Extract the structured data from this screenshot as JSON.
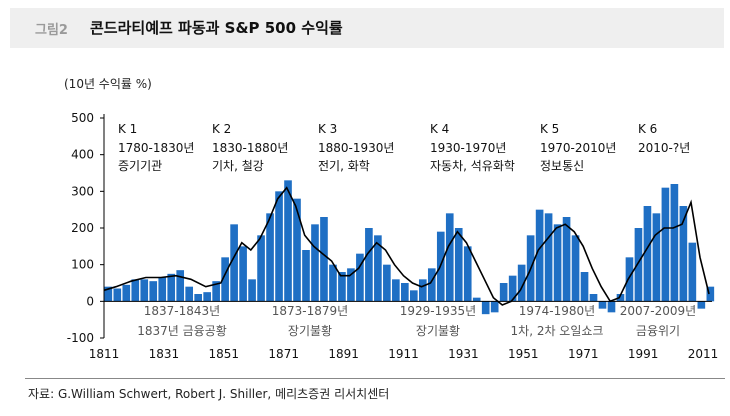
{
  "figure": {
    "label": "그림2",
    "title": "콘드라티예프 파동과 S&P 500 수익률",
    "unit": "(10년 수익률 %)",
    "source": "자료: G.William Schwert, Robert J. Shiller, 메리츠증권 리서치센터"
  },
  "colors": {
    "bars": "#1f6fc4",
    "line": "#000000",
    "axis": "#000000",
    "annotation": "#111111",
    "event": "#555555"
  },
  "chart_data": {
    "type": "bar",
    "x_ticks": [
      "1811",
      "1831",
      "1851",
      "1871",
      "1891",
      "1911",
      "1931",
      "1951",
      "1971",
      "1991",
      "2011"
    ],
    "y_ticks": [
      "500",
      "400",
      "300",
      "200",
      "100",
      "0",
      "-100"
    ],
    "xlim": [
      1811,
      2014
    ],
    "ylim": [
      -100,
      500
    ],
    "series": [
      {
        "kind": "bar",
        "x": [
          1811,
          1814,
          1817,
          1820,
          1823,
          1826,
          1829,
          1832,
          1835,
          1838,
          1841,
          1844,
          1847,
          1850,
          1853,
          1856,
          1859,
          1862,
          1865,
          1868,
          1871,
          1874,
          1877,
          1880,
          1883,
          1886,
          1889,
          1892,
          1895,
          1898,
          1901,
          1904,
          1907,
          1910,
          1913,
          1916,
          1919,
          1922,
          1925,
          1928,
          1931,
          1934,
          1937,
          1940,
          1943,
          1946,
          1949,
          1952,
          1955,
          1958,
          1961,
          1964,
          1967,
          1970,
          1973,
          1976,
          1979,
          1982,
          1985,
          1988,
          1991,
          1994,
          1997,
          2000,
          2003,
          2006,
          2009,
          2012
        ],
        "values": [
          40,
          35,
          45,
          60,
          60,
          55,
          65,
          75,
          85,
          40,
          20,
          25,
          55,
          120,
          210,
          150,
          60,
          180,
          240,
          300,
          330,
          280,
          140,
          210,
          230,
          100,
          80,
          90,
          130,
          200,
          180,
          100,
          60,
          50,
          30,
          60,
          90,
          190,
          240,
          200,
          150,
          10,
          -35,
          -30,
          50,
          70,
          100,
          180,
          250,
          240,
          210,
          230,
          180,
          80,
          20,
          -20,
          -30,
          20,
          120,
          200,
          260,
          240,
          310,
          320,
          260,
          160,
          -20,
          40
        ]
      },
      {
        "kind": "line",
        "x": [
          1811,
          1815,
          1820,
          1825,
          1830,
          1835,
          1840,
          1845,
          1850,
          1853,
          1857,
          1860,
          1863,
          1866,
          1869,
          1872,
          1875,
          1878,
          1881,
          1884,
          1887,
          1890,
          1893,
          1896,
          1899,
          1902,
          1905,
          1908,
          1911,
          1914,
          1917,
          1920,
          1923,
          1926,
          1929,
          1932,
          1935,
          1938,
          1941,
          1944,
          1947,
          1950,
          1953,
          1956,
          1959,
          1962,
          1965,
          1968,
          1971,
          1974,
          1977,
          1980,
          1983,
          1986,
          1989,
          1992,
          1995,
          1998,
          2001,
          2004,
          2007,
          2010,
          2013
        ],
        "values": [
          30,
          40,
          55,
          65,
          65,
          70,
          60,
          40,
          50,
          100,
          160,
          140,
          170,
          220,
          280,
          310,
          260,
          180,
          150,
          130,
          110,
          70,
          70,
          90,
          130,
          160,
          140,
          100,
          70,
          50,
          40,
          50,
          90,
          150,
          190,
          160,
          110,
          60,
          10,
          -10,
          0,
          30,
          80,
          140,
          170,
          200,
          210,
          190,
          150,
          90,
          40,
          0,
          10,
          60,
          100,
          140,
          180,
          200,
          200,
          210,
          270,
          120,
          20
        ]
      }
    ],
    "waves": [
      {
        "code": "K 1",
        "period": "1780-1830년",
        "name": "증기기관"
      },
      {
        "code": "K 2",
        "period": "1830-1880년",
        "name": "기차, 철강"
      },
      {
        "code": "K 3",
        "period": "1880-1930년",
        "name": "전기, 화학"
      },
      {
        "code": "K 4",
        "period": "1930-1970년",
        "name": "자동차, 석유화학"
      },
      {
        "code": "K 5",
        "period": "1970-2010년",
        "name": "정보통신"
      },
      {
        "code": "K 6",
        "period": "2010-?년",
        "name": ""
      }
    ],
    "events": [
      {
        "years": "1837-1843년",
        "label": "1837년 금융공황"
      },
      {
        "years": "1873-1879년",
        "label": "장기불황"
      },
      {
        "years": "1929-1935년",
        "label": "장기불황"
      },
      {
        "years": "1974-1980년",
        "label": "1차, 2차 오일쇼크"
      },
      {
        "years": "2007-2009년",
        "label": "금융위기"
      }
    ]
  }
}
